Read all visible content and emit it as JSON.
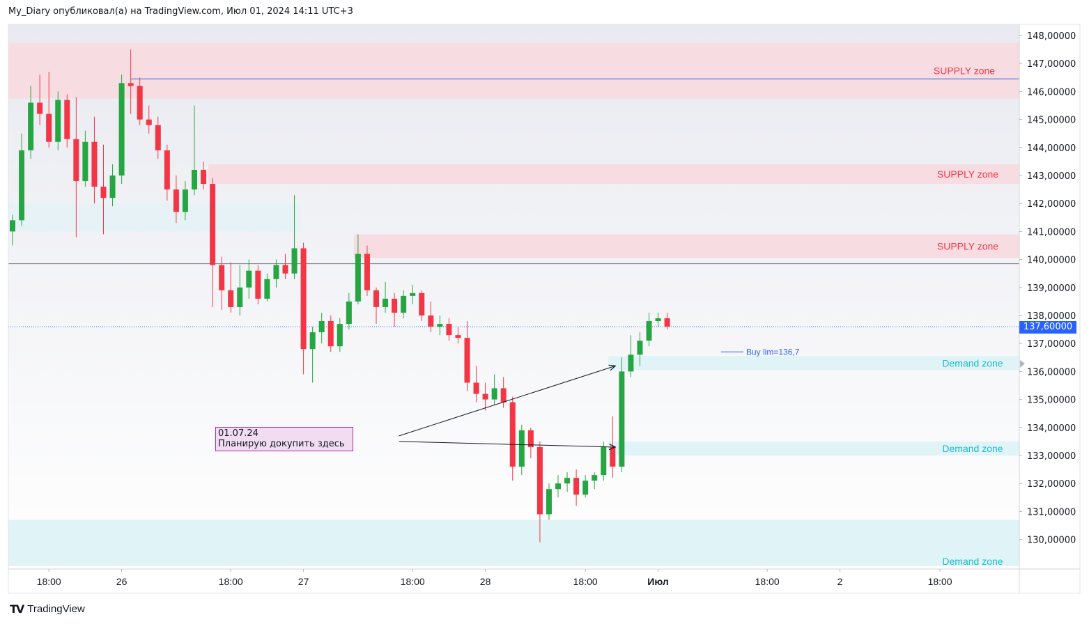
{
  "header": {
    "publisher": "My_Diary опубликовал(а) на TradingView.com, Июл 01, 2024 14:11 UTC+3"
  },
  "footer": {
    "brand": "TradingView",
    "logo": "TV"
  },
  "colors": {
    "up": "#22ab94",
    "up_body": "#26a642",
    "down": "#f23645",
    "supply_fill": "#f7dde2",
    "supply_text": "#f23645",
    "demand_fill": "#e0f3f6",
    "demand_text": "#17bcc7",
    "last_price_tag": "#2962ff",
    "note_fill": "#f1dcf2",
    "note_border": "#a52aaf"
  },
  "last_price": {
    "label": "137,60000",
    "value": 137.6
  },
  "note": {
    "date": "01.07.24",
    "text": "Планирую докупить здесь"
  },
  "order_label": "Buy lim=136,7",
  "chart_data": {
    "type": "candlestick",
    "y_axis": {
      "ylim": [
        129.0,
        148.3
      ],
      "ticks": [
        {
          "v": 148,
          "label": "148,00000"
        },
        {
          "v": 147,
          "label": "147,00000"
        },
        {
          "v": 146,
          "label": "146,00000"
        },
        {
          "v": 145,
          "label": "145,00000"
        },
        {
          "v": 144,
          "label": "144,00000"
        },
        {
          "v": 143,
          "label": "143,00000"
        },
        {
          "v": 142,
          "label": "142,00000"
        },
        {
          "v": 141,
          "label": "141,00000"
        },
        {
          "v": 140,
          "label": "140,00000"
        },
        {
          "v": 139,
          "label": "139,00000"
        },
        {
          "v": 138,
          "label": "138,00000"
        },
        {
          "v": 137,
          "label": "137,00000"
        },
        {
          "v": 136,
          "label": "136,00000"
        },
        {
          "v": 135,
          "label": "135,00000"
        },
        {
          "v": 134,
          "label": "134,00000"
        },
        {
          "v": 133,
          "label": "133,00000"
        },
        {
          "v": 132,
          "label": "132,00000"
        },
        {
          "v": 131,
          "label": "131,00000"
        },
        {
          "v": 130,
          "label": "130,00000"
        }
      ]
    },
    "x_axis": {
      "ticks": [
        {
          "label": "18:00",
          "i": 4
        },
        {
          "label": "26",
          "i": 12
        },
        {
          "label": "18:00",
          "i": 24
        },
        {
          "label": "27",
          "i": 32
        },
        {
          "label": "18:00",
          "i": 44
        },
        {
          "label": "28",
          "i": 52
        },
        {
          "label": "18:00",
          "i": 63
        },
        {
          "label": "Июл",
          "i": 71
        },
        {
          "label": "18:00",
          "i": 83
        },
        {
          "label": "2",
          "i": 91
        },
        {
          "label": "18:00",
          "i": 102
        }
      ],
      "bold_labels": [
        "Июл"
      ]
    },
    "zones": [
      {
        "kind": "supply",
        "label": "SUPPLY zone",
        "top": 147.75,
        "bottom": 145.75,
        "from_i": 0
      },
      {
        "kind": "supply",
        "label": "SUPPLY zone",
        "top": 143.4,
        "bottom": 142.7,
        "from_i": 22
      },
      {
        "kind": "supply",
        "label": "SUPPLY zone",
        "top": 140.9,
        "bottom": 140.05,
        "from_i": 38
      },
      {
        "kind": "demand",
        "label": "Demand zone",
        "top": 136.55,
        "bottom": 136.05,
        "from_i": 66
      },
      {
        "kind": "demand",
        "label": "Demand zone",
        "top": 133.5,
        "bottom": 133.0,
        "from_i": 66
      },
      {
        "kind": "demand",
        "label": "Demand zone",
        "top": 130.7,
        "bottom": 129.05,
        "from_i": 0
      }
    ],
    "horizontal_lines": [
      {
        "value": 146.45,
        "style": "solid",
        "color": "#2962ff",
        "from_i": 13
      },
      {
        "value": 139.85,
        "style": "solid",
        "color": "#787b86",
        "from_i": 0
      },
      {
        "value": 137.6,
        "style": "dotted",
        "color": "#2962ff",
        "from_i": 0
      }
    ],
    "order_line": {
      "value": 136.7,
      "from_i": 76,
      "to_i": 80
    },
    "arrows": [
      {
        "from": [
          42.5,
          133.7
        ],
        "to": [
          66.3,
          136.2
        ]
      },
      {
        "from": [
          42.5,
          133.5
        ],
        "to": [
          66.3,
          133.3
        ]
      }
    ],
    "candles": [
      {
        "o": 141.0,
        "h": 141.6,
        "l": 140.5,
        "c": 141.4
      },
      {
        "o": 141.4,
        "h": 144.5,
        "l": 141.2,
        "c": 143.9
      },
      {
        "o": 143.9,
        "h": 146.2,
        "l": 143.6,
        "c": 145.6
      },
      {
        "o": 145.6,
        "h": 146.6,
        "l": 144.8,
        "c": 145.2
      },
      {
        "o": 145.2,
        "h": 146.7,
        "l": 144.0,
        "c": 144.2
      },
      {
        "o": 144.2,
        "h": 146.0,
        "l": 143.9,
        "c": 145.7
      },
      {
        "o": 145.7,
        "h": 145.9,
        "l": 144.0,
        "c": 144.3
      },
      {
        "o": 144.3,
        "h": 145.8,
        "l": 140.8,
        "c": 142.8
      },
      {
        "o": 142.8,
        "h": 144.6,
        "l": 142.6,
        "c": 144.2
      },
      {
        "o": 144.2,
        "h": 145.1,
        "l": 142.0,
        "c": 142.6
      },
      {
        "o": 142.6,
        "h": 144.1,
        "l": 140.9,
        "c": 142.2
      },
      {
        "o": 142.2,
        "h": 143.4,
        "l": 141.9,
        "c": 143.0
      },
      {
        "o": 143.0,
        "h": 146.6,
        "l": 142.7,
        "c": 146.3
      },
      {
        "o": 146.3,
        "h": 147.5,
        "l": 145.2,
        "c": 146.2
      },
      {
        "o": 146.2,
        "h": 146.5,
        "l": 144.8,
        "c": 145.0
      },
      {
        "o": 145.0,
        "h": 145.5,
        "l": 144.5,
        "c": 144.8
      },
      {
        "o": 144.8,
        "h": 145.1,
        "l": 143.6,
        "c": 143.9
      },
      {
        "o": 143.9,
        "h": 144.1,
        "l": 142.1,
        "c": 142.5
      },
      {
        "o": 142.5,
        "h": 143.0,
        "l": 141.3,
        "c": 141.7
      },
      {
        "o": 141.7,
        "h": 142.8,
        "l": 141.4,
        "c": 142.5
      },
      {
        "o": 142.5,
        "h": 145.5,
        "l": 142.3,
        "c": 143.2
      },
      {
        "o": 143.2,
        "h": 143.5,
        "l": 142.5,
        "c": 142.7
      },
      {
        "o": 142.7,
        "h": 142.9,
        "l": 138.3,
        "c": 139.8
      },
      {
        "o": 139.8,
        "h": 140.1,
        "l": 138.2,
        "c": 138.9
      },
      {
        "o": 138.9,
        "h": 139.9,
        "l": 138.1,
        "c": 138.3
      },
      {
        "o": 138.3,
        "h": 139.8,
        "l": 138.0,
        "c": 139.0
      },
      {
        "o": 139.0,
        "h": 140.0,
        "l": 138.6,
        "c": 139.6
      },
      {
        "o": 139.6,
        "h": 139.8,
        "l": 138.4,
        "c": 138.6
      },
      {
        "o": 138.6,
        "h": 139.5,
        "l": 138.5,
        "c": 139.3
      },
      {
        "o": 139.3,
        "h": 140.0,
        "l": 139.0,
        "c": 139.8
      },
      {
        "o": 139.8,
        "h": 140.2,
        "l": 139.3,
        "c": 139.5
      },
      {
        "o": 139.5,
        "h": 142.3,
        "l": 139.3,
        "c": 140.4
      },
      {
        "o": 140.4,
        "h": 140.6,
        "l": 135.9,
        "c": 136.8
      },
      {
        "o": 136.8,
        "h": 137.6,
        "l": 135.6,
        "c": 137.4
      },
      {
        "o": 137.4,
        "h": 138.1,
        "l": 137.0,
        "c": 137.8
      },
      {
        "o": 137.8,
        "h": 138.0,
        "l": 136.7,
        "c": 136.9
      },
      {
        "o": 136.9,
        "h": 137.9,
        "l": 136.7,
        "c": 137.7
      },
      {
        "o": 137.7,
        "h": 138.8,
        "l": 137.5,
        "c": 138.5
      },
      {
        "o": 138.5,
        "h": 140.9,
        "l": 138.4,
        "c": 140.2
      },
      {
        "o": 140.2,
        "h": 140.5,
        "l": 138.7,
        "c": 138.9
      },
      {
        "o": 138.9,
        "h": 139.0,
        "l": 137.7,
        "c": 138.3
      },
      {
        "o": 138.3,
        "h": 139.2,
        "l": 138.1,
        "c": 138.6
      },
      {
        "o": 138.6,
        "h": 138.8,
        "l": 137.6,
        "c": 138.1
      },
      {
        "o": 138.1,
        "h": 138.9,
        "l": 137.9,
        "c": 138.7
      },
      {
        "o": 138.7,
        "h": 139.1,
        "l": 138.4,
        "c": 138.8
      },
      {
        "o": 138.8,
        "h": 138.9,
        "l": 137.8,
        "c": 138.0
      },
      {
        "o": 138.0,
        "h": 138.5,
        "l": 137.4,
        "c": 137.6
      },
      {
        "o": 137.6,
        "h": 138.0,
        "l": 137.3,
        "c": 137.7
      },
      {
        "o": 137.7,
        "h": 137.9,
        "l": 137.1,
        "c": 137.3
      },
      {
        "o": 137.3,
        "h": 137.6,
        "l": 137.0,
        "c": 137.2
      },
      {
        "o": 137.2,
        "h": 137.8,
        "l": 135.3,
        "c": 135.6
      },
      {
        "o": 135.6,
        "h": 136.2,
        "l": 134.9,
        "c": 135.2
      },
      {
        "o": 135.2,
        "h": 135.6,
        "l": 134.6,
        "c": 135.0
      },
      {
        "o": 135.0,
        "h": 135.9,
        "l": 134.8,
        "c": 135.4
      },
      {
        "o": 135.4,
        "h": 135.8,
        "l": 134.7,
        "c": 134.9
      },
      {
        "o": 134.9,
        "h": 135.1,
        "l": 132.1,
        "c": 132.6
      },
      {
        "o": 132.6,
        "h": 134.1,
        "l": 132.3,
        "c": 133.9
      },
      {
        "o": 133.9,
        "h": 134.0,
        "l": 132.9,
        "c": 133.3
      },
      {
        "o": 133.3,
        "h": 133.5,
        "l": 129.9,
        "c": 130.9
      },
      {
        "o": 130.9,
        "h": 132.0,
        "l": 130.7,
        "c": 131.8
      },
      {
        "o": 131.8,
        "h": 132.3,
        "l": 131.5,
        "c": 132.0
      },
      {
        "o": 132.0,
        "h": 132.4,
        "l": 131.7,
        "c": 132.2
      },
      {
        "o": 132.2,
        "h": 132.5,
        "l": 131.2,
        "c": 131.6
      },
      {
        "o": 131.6,
        "h": 132.3,
        "l": 131.5,
        "c": 132.1
      },
      {
        "o": 132.1,
        "h": 132.4,
        "l": 131.8,
        "c": 132.3
      },
      {
        "o": 132.3,
        "h": 133.5,
        "l": 132.1,
        "c": 133.3
      },
      {
        "o": 133.3,
        "h": 134.4,
        "l": 132.2,
        "c": 132.6
      },
      {
        "o": 132.6,
        "h": 136.5,
        "l": 132.4,
        "c": 136.0
      },
      {
        "o": 136.0,
        "h": 137.3,
        "l": 135.8,
        "c": 136.6
      },
      {
        "o": 136.6,
        "h": 137.4,
        "l": 136.2,
        "c": 137.1
      },
      {
        "o": 137.1,
        "h": 138.1,
        "l": 136.9,
        "c": 137.8
      },
      {
        "o": 137.8,
        "h": 138.1,
        "l": 137.6,
        "c": 137.9
      },
      {
        "o": 137.9,
        "h": 138.1,
        "l": 137.5,
        "c": 137.6
      }
    ],
    "grid": false
  }
}
